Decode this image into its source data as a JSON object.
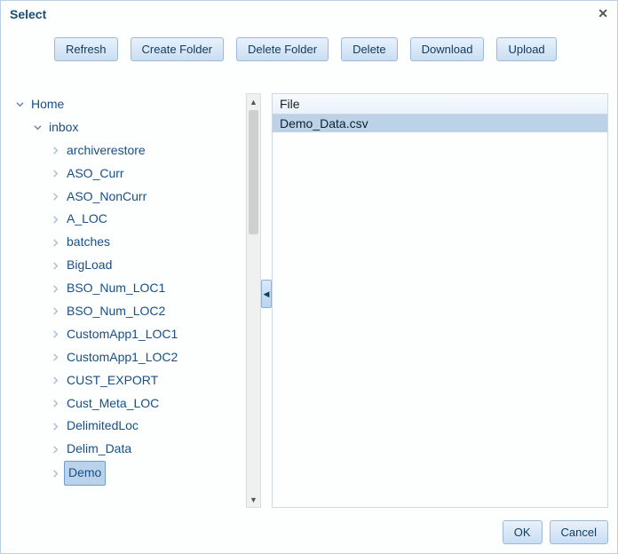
{
  "dialog": {
    "title": "Select"
  },
  "toolbar": {
    "refresh": "Refresh",
    "create_folder": "Create Folder",
    "delete_folder": "Delete Folder",
    "delete": "Delete",
    "download": "Download",
    "upload": "Upload"
  },
  "tree": {
    "root": {
      "label": "Home",
      "expanded": true
    },
    "inbox": {
      "label": "inbox",
      "expanded": true
    },
    "items": [
      {
        "label": "archiverestore"
      },
      {
        "label": "ASO_Curr"
      },
      {
        "label": "ASO_NonCurr"
      },
      {
        "label": "A_LOC"
      },
      {
        "label": "batches"
      },
      {
        "label": "BigLoad"
      },
      {
        "label": "BSO_Num_LOC1"
      },
      {
        "label": "BSO_Num_LOC2"
      },
      {
        "label": "CustomApp1_LOC1"
      },
      {
        "label": "CustomApp1_LOC2"
      },
      {
        "label": "CUST_EXPORT"
      },
      {
        "label": "Cust_Meta_LOC"
      },
      {
        "label": "DelimitedLoc"
      },
      {
        "label": "Delim_Data"
      },
      {
        "label": "Demo",
        "selected": true
      }
    ]
  },
  "fileList": {
    "header": "File",
    "rows": [
      {
        "name": "Demo_Data.csv",
        "selected": true
      }
    ]
  },
  "footer": {
    "ok": "OK",
    "cancel": "Cancel"
  },
  "colors": {
    "accent_text": "#184f85",
    "button_border": "#9cb9d6",
    "selection_bg": "#bcd2e7"
  }
}
